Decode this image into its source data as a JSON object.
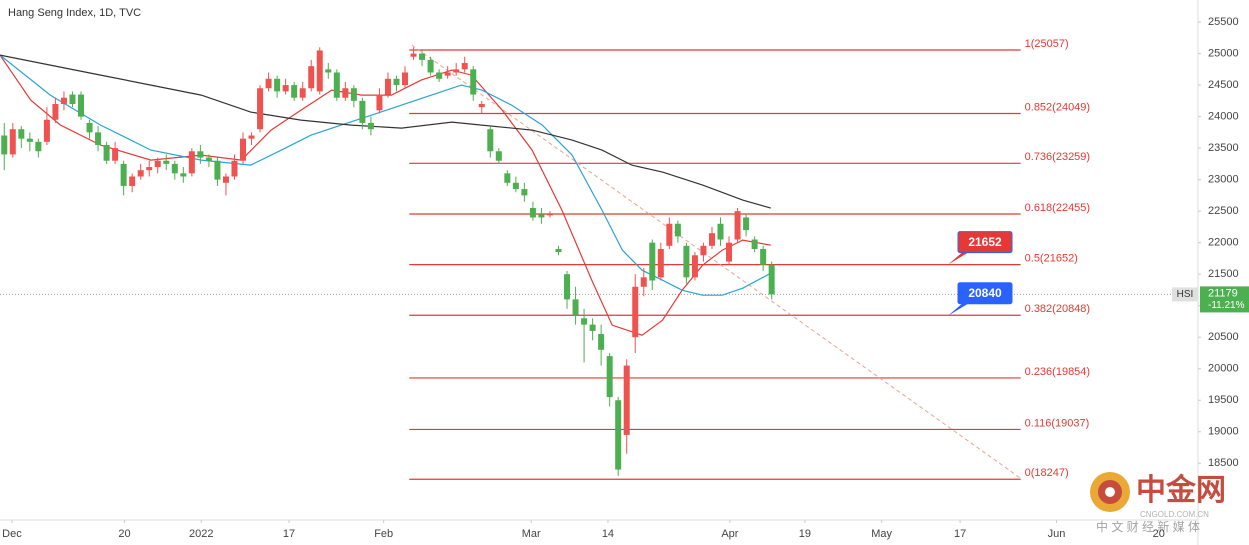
{
  "chart_data": {
    "type": "candlestick",
    "title": "Hang Seng Index, 1D, TVC",
    "up_color": "#ef5350",
    "down_color": "#4caf50",
    "ylim": [
      17600,
      25850
    ],
    "yticks": [
      18500,
      19000,
      19500,
      20000,
      20500,
      21000,
      21500,
      22000,
      22500,
      23000,
      23500,
      24000,
      24500,
      25000,
      25500
    ],
    "xlim": [
      -0.5,
      140
    ],
    "xticks": [
      {
        "value": 0.9,
        "label": "Dec"
      },
      {
        "value": 14.1,
        "label": "20"
      },
      {
        "value": 23.1,
        "label": "2022"
      },
      {
        "value": 33.4,
        "label": "17"
      },
      {
        "value": 44.5,
        "label": "Feb"
      },
      {
        "value": 61.8,
        "label": "Mar"
      },
      {
        "value": 70.8,
        "label": "14"
      },
      {
        "value": 85.1,
        "label": "Apr"
      },
      {
        "value": 93.9,
        "label": "19"
      },
      {
        "value": 102.9,
        "label": "May"
      },
      {
        "value": 112.1,
        "label": "17"
      },
      {
        "value": 123.4,
        "label": "Jun"
      },
      {
        "value": 135.4,
        "label": "20"
      }
    ],
    "x": [
      0,
      1,
      2,
      3,
      4,
      5,
      6,
      7,
      8,
      9,
      10,
      11,
      12,
      13,
      14,
      15,
      16,
      17,
      18,
      19,
      20,
      21,
      22,
      23,
      24,
      25,
      26,
      27,
      28,
      29,
      30,
      31,
      32,
      33,
      34,
      35,
      36,
      37,
      38,
      39,
      40,
      41,
      42,
      43,
      44,
      45,
      46,
      47,
      48,
      49,
      50,
      51,
      52,
      53,
      54,
      55,
      56,
      57,
      58,
      59,
      60,
      61,
      62,
      63,
      64,
      65,
      66,
      67,
      68,
      69,
      70,
      71,
      72,
      73,
      74,
      75,
      76,
      77,
      78,
      79,
      80,
      81,
      82,
      83,
      84,
      85,
      86,
      87,
      88,
      89,
      90
    ],
    "open": [
      23700,
      23400,
      23800,
      23650,
      23600,
      23600,
      23950,
      24200,
      24350,
      24350,
      23900,
      23750,
      23550,
      23300,
      23250,
      22900,
      23050,
      23150,
      23200,
      23300,
      23250,
      23100,
      23100,
      23450,
      23350,
      23300,
      22950,
      23050,
      23300,
      23650,
      23800,
      24450,
      24600,
      24400,
      24500,
      24300,
      24450,
      24400,
      24750,
      24700,
      24300,
      24450,
      24250,
      23900,
      24100,
      24350,
      24600,
      24500,
      24950,
      25000,
      24900,
      24700,
      24650,
      24700,
      24750,
      24750,
      24150,
      23800,
      23450,
      23100,
      22950,
      22850,
      22550,
      22450,
      22450,
      21900,
      21500,
      21100,
      20800,
      20700,
      20550,
      20200,
      19500,
      18950,
      20500,
      21300,
      22000,
      21450,
      21950,
      22300,
      21950,
      21450,
      21800,
      21950,
      22300,
      21700,
      22050,
      22400,
      22050,
      21900,
      21650
    ],
    "high": [
      23900,
      23900,
      23850,
      23750,
      23650,
      24150,
      24300,
      24400,
      24400,
      24400,
      23950,
      23850,
      23600,
      23600,
      23300,
      23100,
      23250,
      23300,
      23350,
      23400,
      23300,
      23200,
      23500,
      23550,
      23400,
      23350,
      23100,
      23400,
      23750,
      23750,
      24500,
      24700,
      24650,
      24600,
      24550,
      24550,
      24900,
      25100,
      24850,
      24750,
      24550,
      24500,
      24300,
      24000,
      24450,
      24700,
      24650,
      24800,
      25100,
      25050,
      24950,
      24750,
      24800,
      24850,
      24950,
      24800,
      24250,
      23850,
      23500,
      23150,
      23050,
      22950,
      22650,
      22550,
      22500,
      21950,
      21550,
      21300,
      20950,
      20800,
      20700,
      20250,
      19550,
      20150,
      21500,
      21600,
      22050,
      22000,
      22400,
      22350,
      22000,
      21850,
      22000,
      22250,
      22400,
      22100,
      22550,
      22450,
      22100,
      21950,
      21700
    ],
    "low": [
      23150,
      23350,
      23500,
      23450,
      23350,
      23550,
      23900,
      24100,
      24150,
      23950,
      23650,
      23450,
      23250,
      23250,
      22750,
      22800,
      23000,
      23050,
      23100,
      23150,
      23000,
      22950,
      23050,
      23250,
      23200,
      22900,
      22750,
      23000,
      23250,
      23550,
      23750,
      24400,
      24300,
      24350,
      24250,
      24250,
      24400,
      24350,
      24600,
      24250,
      24250,
      24150,
      23800,
      23700,
      24050,
      24300,
      24400,
      24450,
      24900,
      24800,
      24650,
      24550,
      24600,
      24650,
      24700,
      24250,
      24050,
      23350,
      23250,
      22900,
      22800,
      22650,
      22350,
      22300,
      22400,
      21800,
      20950,
      20700,
      20100,
      20450,
      20050,
      19400,
      18300,
      18650,
      20250,
      21150,
      21250,
      21400,
      21900,
      22000,
      21350,
      21400,
      21700,
      21900,
      21950,
      21650,
      22000,
      22100,
      21850,
      21550,
      21100
    ],
    "close": [
      23400,
      23800,
      23650,
      23600,
      23450,
      23950,
      24200,
      24300,
      24200,
      24000,
      23750,
      23550,
      23300,
      23500,
      22900,
      23050,
      23150,
      23200,
      23300,
      23250,
      23100,
      23050,
      23450,
      23350,
      23300,
      23000,
      23050,
      23300,
      23650,
      23700,
      24450,
      24600,
      24400,
      24500,
      24300,
      24450,
      24800,
      25050,
      24700,
      24300,
      24450,
      24250,
      23900,
      23800,
      24350,
      24600,
      24500,
      24700,
      25000,
      24900,
      24700,
      24600,
      24700,
      24750,
      24850,
      24350,
      24200,
      23450,
      23300,
      22950,
      22850,
      22750,
      22400,
      22400,
      22450,
      21850,
      21100,
      20850,
      20700,
      20600,
      20300,
      19550,
      18400,
      20050,
      21300,
      21450,
      21400,
      21900,
      22300,
      22100,
      21450,
      21800,
      21950,
      22150,
      22050,
      22000,
      22500,
      22200,
      21900,
      21650,
      21179
    ],
    "series": [
      {
        "color": "#e53935",
        "x": [
          -0.5,
          3.1,
          6.6,
          11.3,
          17.2,
          23.1,
          27.8,
          31.3,
          34.8,
          38.4,
          41.9,
          45.4,
          48.9,
          52.5,
          54.8,
          58.4,
          61.9,
          65.4,
          68.9,
          71.3,
          74.8,
          77.2,
          79.5,
          81.9,
          84.2,
          86.6,
          89.9
        ],
        "values": [
          24976,
          24262,
          23865,
          23548,
          23310,
          23389,
          23310,
          23786,
          24103,
          24421,
          24341,
          24341,
          24579,
          24738,
          24659,
          24103,
          23468,
          22516,
          21405,
          20690,
          20532,
          20770,
          21246,
          21643,
          21881,
          22040,
          21960
        ]
      },
      {
        "color": "#29a3d6",
        "x": [
          -0.5,
          5.4,
          11.3,
          17.2,
          23.1,
          28.9,
          32.5,
          36,
          39.5,
          43.1,
          46.6,
          50.1,
          53.6,
          56,
          59.5,
          63.1,
          66.6,
          70.1,
          72.5,
          74.8,
          77.2,
          79.5,
          81.9,
          84.2,
          86.6,
          89.9
        ],
        "values": [
          24976,
          24341,
          23865,
          23468,
          23310,
          23230,
          23468,
          23706,
          23865,
          24024,
          24183,
          24341,
          24500,
          24421,
          24183,
          23865,
          23389,
          22516,
          21881,
          21563,
          21405,
          21246,
          21167,
          21167,
          21278,
          21516
        ]
      },
      {
        "color": "#333333",
        "x": [
          -0.5,
          5.4,
          11.3,
          17.2,
          23.1,
          28.9,
          34.8,
          40.7,
          46.6,
          52.5,
          56,
          61.9,
          66.6,
          70.1,
          73.6,
          77.2,
          81.9,
          86.6,
          89.9
        ],
        "values": [
          24976,
          24817,
          24659,
          24500,
          24341,
          24071,
          23944,
          23865,
          23817,
          23913,
          23865,
          23786,
          23627,
          23468,
          23230,
          23119,
          22913,
          22675,
          22548
        ]
      }
    ],
    "fib_x": [
      47.5,
      119.2
    ],
    "fib_color": "#e53935",
    "fib_levels": [
      {
        "value": 25057,
        "label": "1(25057)"
      },
      {
        "value": 24049,
        "label": "0.852(24049)"
      },
      {
        "value": 23259,
        "label": "0.736(23259)"
      },
      {
        "value": 22455,
        "label": "0.618(22455)"
      },
      {
        "value": 21652,
        "label": "0.5(21652)"
      },
      {
        "value": 20848,
        "label": "0.382(20848)"
      },
      {
        "value": 19854,
        "label": "0.236(19854)"
      },
      {
        "value": 19037,
        "label": "0.116(19037)"
      },
      {
        "value": 18247,
        "label": "0(18247)"
      }
    ],
    "trendline": {
      "color": "#f0a090",
      "x": [
        47.8,
        119.2
      ],
      "values": [
        25135,
        18262
      ]
    },
    "callouts": [
      {
        "value": 21652,
        "color": "#e53935"
      },
      {
        "value": 20840,
        "color": "#2962ff"
      }
    ],
    "last": {
      "symbol": "HSI",
      "value": 21179,
      "change": "-11.21%",
      "color": "#4caf50"
    }
  },
  "watermark": {
    "title": "中金网",
    "site": "CNGOLD.COM.CN",
    "slogan": "中 文 财 经 新 媒 体"
  }
}
